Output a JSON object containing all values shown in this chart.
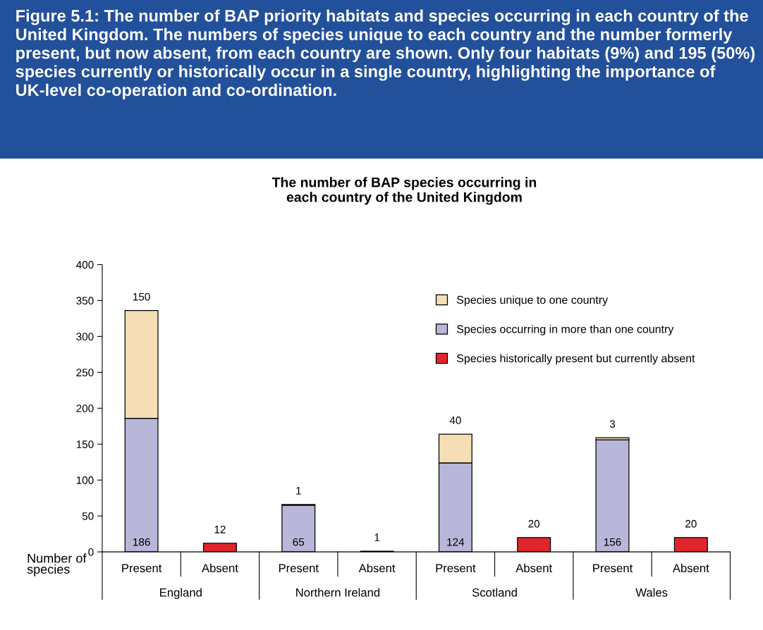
{
  "chart_data": {
    "type": "bar",
    "stacked": true,
    "title": "Figure 5.1: The number of BAP priority habitats and species occurring in each country of the United Kingdom. The numbers of species unique to each country and the number formerly present, but now absent, from each country are shown. Only four habitats (9%) and 195 (50%) species currently or historically occur in a single country, highlighting the importance of UK-level co-operation and co-ordination.",
    "subtitle": "The number of BAP species occurring in\neach country of the United Kingdom",
    "ylabel": "Number of\nspecies",
    "categories": [
      "Present",
      "Absent",
      "Present",
      "Absent",
      "Present",
      "Absent",
      "Present",
      "Absent"
    ],
    "annotations": [
      "England",
      "Northern Ireland",
      "Scotland",
      "Wales"
    ],
    "series": [
      {
        "name": "Species occurring in more than one country",
        "color": "#b8b6d9",
        "values": [
          186,
          null,
          65,
          null,
          124,
          null,
          156,
          null
        ],
        "value_labels": [
          "186",
          null,
          "65",
          null,
          "124",
          null,
          "156",
          null
        ]
      },
      {
        "name": "Species unique to one country",
        "color": "#f5ddb5",
        "values": [
          150,
          null,
          1,
          null,
          40,
          null,
          3,
          null
        ],
        "value_labels": [
          "150",
          null,
          "1",
          null,
          "40",
          null,
          "3",
          null
        ]
      },
      {
        "name": "Species historically present but currently absent",
        "color": "#e0262d",
        "values": [
          null,
          12,
          null,
          1,
          null,
          20,
          null,
          20
        ],
        "value_labels": [
          null,
          "12",
          null,
          "1",
          null,
          "20",
          null,
          "20"
        ]
      }
    ],
    "ylim": [
      0,
      400
    ],
    "yticks": [
      0,
      50,
      100,
      150,
      200,
      250,
      300,
      350,
      400
    ],
    "grid": false,
    "legend": "top right"
  }
}
